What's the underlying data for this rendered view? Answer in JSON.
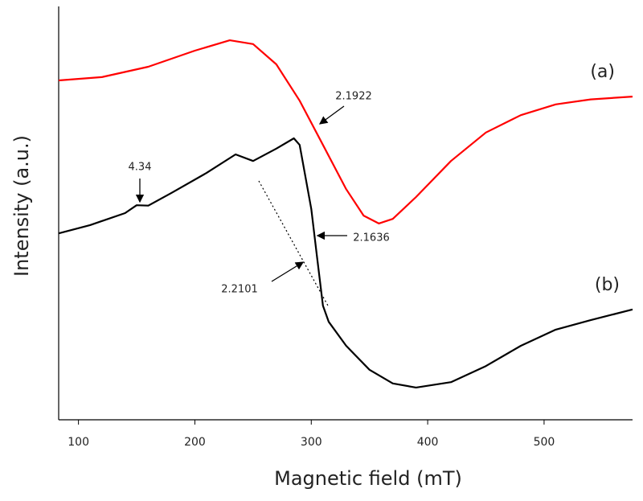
{
  "chart_data": {
    "type": "line",
    "x_label": "Magnetic field (mT)",
    "y_label": "Intensity (a.u.)",
    "xlim": [
      83,
      576
    ],
    "xticks": [
      100,
      200,
      300,
      400,
      500
    ],
    "ylim": [
      0,
      100
    ],
    "series": [
      {
        "name": "(a)",
        "color": "#ff0000",
        "x": [
          83,
          120,
          160,
          200,
          230,
          250,
          270,
          290,
          310,
          330,
          345,
          358,
          370,
          390,
          420,
          450,
          480,
          510,
          540,
          576
        ],
        "values": [
          82.1,
          82.9,
          85.4,
          89.3,
          91.8,
          90.9,
          86.0,
          77.2,
          66.5,
          55.8,
          49.4,
          47.5,
          48.6,
          53.9,
          62.6,
          69.5,
          73.7,
          76.3,
          77.5,
          78.2
        ]
      },
      {
        "name": "(b)",
        "color": "#000000",
        "x": [
          83,
          110,
          140,
          150,
          160,
          180,
          210,
          235,
          250,
          270,
          285,
          290,
          300,
          305,
          310,
          315,
          330,
          350,
          370,
          390,
          420,
          450,
          480,
          510,
          540,
          576
        ],
        "values": [
          45.1,
          47.1,
          50.0,
          51.9,
          51.8,
          54.9,
          59.7,
          64.2,
          62.6,
          65.6,
          68.1,
          66.5,
          51.0,
          39.3,
          27.6,
          23.7,
          17.9,
          12.1,
          8.8,
          7.8,
          9.1,
          13.0,
          17.9,
          21.8,
          24.1,
          26.7
        ]
      }
    ],
    "annotations": [
      "2.1922",
      "4.34",
      "2.1636",
      "2.2101"
    ]
  }
}
